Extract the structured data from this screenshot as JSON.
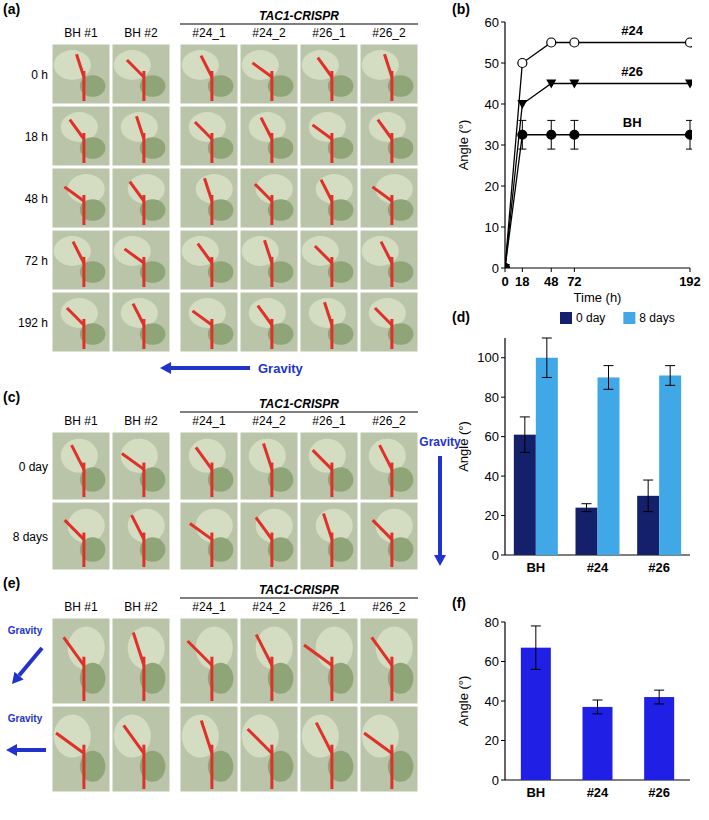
{
  "photo_panels": [
    {
      "panel_label": "(a)",
      "group_header": "TAC1-CRISPR",
      "columns": [
        "BH #1",
        "BH #2",
        "#24_1",
        "#24_2",
        "#26_1",
        "#26_2"
      ],
      "rows": [
        "0 h",
        "18 h",
        "48 h",
        "72 h",
        "192 h"
      ],
      "gravity_label": "Gravity"
    },
    {
      "panel_label": "(c)",
      "group_header": "TAC1-CRISPR",
      "columns": [
        "BH #1",
        "BH #2",
        "#24_1",
        "#24_2",
        "#26_1",
        "#26_2"
      ],
      "rows": [
        "0 day",
        "8 days"
      ],
      "gravity_label": "Gravity"
    },
    {
      "panel_label": "(e)",
      "group_header": "TAC1-CRISPR",
      "columns": [
        "BH #1",
        "BH #2",
        "#24_1",
        "#24_2",
        "#26_1",
        "#26_2"
      ],
      "row_gravity_labels": [
        "Gravity",
        "Gravity"
      ]
    }
  ],
  "chart_data": [
    {
      "type": "line",
      "panel_label": "(b)",
      "x": [
        0,
        18,
        48,
        72,
        192
      ],
      "xlim": [
        0,
        192
      ],
      "xticks": [
        0,
        18,
        48,
        72,
        192
      ],
      "xlabel": "Time (h)",
      "ylabel": "Angle (°)",
      "ylim": [
        0,
        60
      ],
      "yticks": [
        0,
        10,
        20,
        30,
        40,
        50,
        60
      ],
      "series": [
        {
          "name": "#24",
          "color": "#000000",
          "marker": "circle-open",
          "values": [
            0,
            50,
            55,
            55,
            55
          ]
        },
        {
          "name": "#26",
          "color": "#000000",
          "marker": "triangle-down",
          "values": [
            0,
            40,
            45,
            45,
            45
          ]
        },
        {
          "name": "BH",
          "color": "#000000",
          "marker": "circle",
          "values": [
            0,
            32.5,
            32.5,
            32.5,
            32.5
          ],
          "errors": [
            0,
            3.5,
            3.5,
            3.5,
            3.5
          ]
        }
      ]
    },
    {
      "type": "bar",
      "panel_label": "(d)",
      "categories": [
        "BH",
        "#24",
        "#26"
      ],
      "ylabel": "Angle (°)",
      "ylim": [
        0,
        110
      ],
      "yticks": [
        0,
        20,
        40,
        60,
        80,
        100
      ],
      "legend": "top",
      "series": [
        {
          "name": "0 day",
          "color": "#14206b",
          "values": [
            61,
            24,
            30
          ],
          "errors": [
            9,
            2,
            8
          ]
        },
        {
          "name": "8 days",
          "color": "#41a8e8",
          "values": [
            100,
            90,
            91
          ],
          "errors": [
            10,
            6,
            5
          ]
        }
      ]
    },
    {
      "type": "bar",
      "panel_label": "(f)",
      "categories": [
        "BH",
        "#24",
        "#26"
      ],
      "ylabel": "Angle (°)",
      "ylim": [
        0,
        80
      ],
      "yticks": [
        0,
        20,
        40,
        60,
        80
      ],
      "color": "#1f1fe6",
      "values": [
        67,
        37,
        42
      ],
      "errors": [
        11,
        3.5,
        3.5
      ]
    }
  ]
}
